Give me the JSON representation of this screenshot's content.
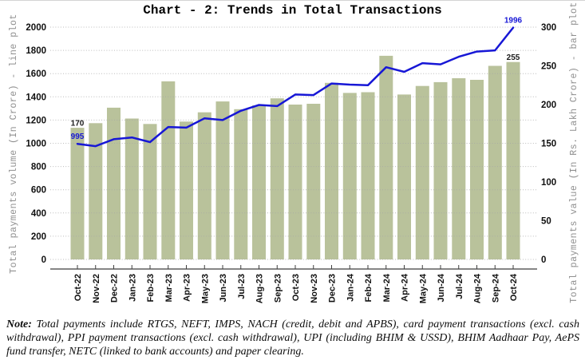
{
  "chart": {
    "title": "Chart - 2: Trends in Total Transactions"
  },
  "chart_data": {
    "type": "combo-bar-line",
    "categories": [
      "Oct-22",
      "Nov-22",
      "Dec-22",
      "Jan-23",
      "Feb-23",
      "Mar-23",
      "Apr-23",
      "May-23",
      "Jun-23",
      "Jul-23",
      "Aug-23",
      "Sep-23",
      "Oct-23",
      "Nov-23",
      "Dec-23",
      "Jan-24",
      "Feb-24",
      "Mar-24",
      "Apr-24",
      "May-24",
      "Jun-24",
      "Jul-24",
      "Aug-24",
      "Sep-24",
      "Oct-24"
    ],
    "series": [
      {
        "name": "Total payments volume",
        "unit": "In Crore",
        "type": "line",
        "axis": "left",
        "color": "#1717d6",
        "values": [
          995,
          975,
          1035,
          1050,
          1010,
          1140,
          1135,
          1215,
          1200,
          1280,
          1330,
          1320,
          1420,
          1415,
          1515,
          1505,
          1500,
          1655,
          1615,
          1690,
          1680,
          1745,
          1790,
          1800,
          1996
        ]
      },
      {
        "name": "Total payments value",
        "unit": "In Rs. Lakh Crore",
        "type": "bar",
        "axis": "right",
        "color": "#b9c29b",
        "values": [
          170,
          176,
          196,
          182,
          175,
          230,
          178,
          190,
          204,
          194,
          199,
          208,
          200,
          201,
          228,
          215,
          216,
          263,
          213,
          224,
          229,
          234,
          232,
          250,
          255
        ]
      }
    ],
    "left_axis": {
      "label": "Total payments volume (In Crore) - line plot",
      "min": 0,
      "max": 2000,
      "ticks": [
        0,
        200,
        400,
        600,
        800,
        1000,
        1200,
        1400,
        1600,
        1800,
        2000
      ]
    },
    "right_axis": {
      "label": "Total payments value (In Rs. Lakh Crore) - bar plot",
      "min": 0,
      "max": 300,
      "ticks": [
        0,
        50,
        100,
        150,
        200,
        250,
        300
      ]
    },
    "grid": true,
    "legend": false,
    "annotations": [
      {
        "text": "170",
        "month": "Oct-22",
        "series": "bar",
        "color": "#1a1a1a"
      },
      {
        "text": "995",
        "month": "Oct-22",
        "series": "line",
        "color": "#1717d6"
      },
      {
        "text": "1996",
        "month": "Oct-24",
        "series": "line",
        "color": "#1717d6"
      },
      {
        "text": "255",
        "month": "Oct-24",
        "series": "bar",
        "color": "#1a1a1a"
      }
    ],
    "style": {
      "grid_color": "#a6a6a6",
      "axis_line_color": "#3f3f3f"
    }
  },
  "note": {
    "label": "Note:",
    "text": "Total payments include RTGS, NEFT, IMPS, NACH (credit, debit and APBS), card payment transactions (excl. cash withdrawal), PPI payment transactions (excl. cash withdrawal), UPI (including BHIM & USSD), BHIM Aadhaar Pay, AePS fund transfer, NETC (linked to bank accounts) and paper clearing."
  }
}
